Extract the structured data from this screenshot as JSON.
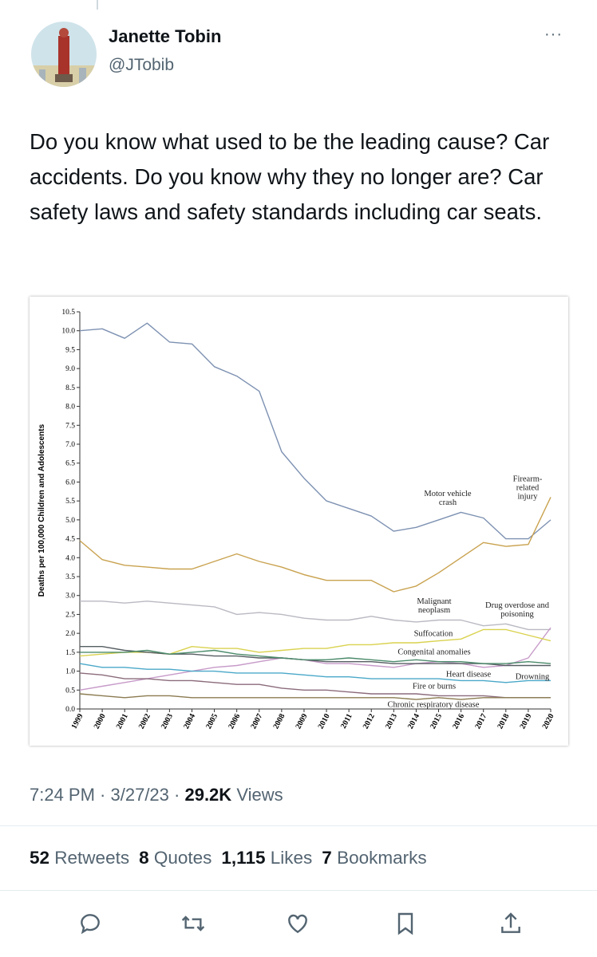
{
  "tweet": {
    "author_name": "Janette Tobin",
    "handle": "@JTobib",
    "text": "Do you know what used to be the leading cause? Car accidents. Do you know why they no longer are? Car safety laws and safety standards including car seats.",
    "time": "7:24 PM",
    "date": "3/27/23",
    "views": "29.2K",
    "views_label": "Views"
  },
  "stats": [
    {
      "count": "52",
      "label": "Retweets"
    },
    {
      "count": "8",
      "label": "Quotes"
    },
    {
      "count": "1,115",
      "label": "Likes"
    },
    {
      "count": "7",
      "label": "Bookmarks"
    }
  ],
  "chart_data": {
    "type": "line",
    "y_label": "Deaths per 100,000 Children and Adolescents",
    "categories": [
      "1999",
      "2000",
      "2001",
      "2002",
      "2003",
      "2004",
      "2005",
      "2006",
      "2007",
      "2008",
      "2009",
      "2010",
      "2011",
      "2012",
      "2013",
      "2014",
      "2015",
      "2016",
      "2017",
      "2018",
      "2019",
      "2020"
    ],
    "ylim": [
      0,
      10.5
    ],
    "yticks": [
      {
        "value": 0,
        "label": "0.0"
      },
      {
        "value": 0.5,
        "label": "0.5"
      },
      {
        "value": 1,
        "label": "1.0"
      },
      {
        "value": 1.5,
        "label": "1.5"
      },
      {
        "value": 2,
        "label": "2.0"
      },
      {
        "value": 2.5,
        "label": "2.5"
      },
      {
        "value": 3,
        "label": "3.0"
      },
      {
        "value": 3.5,
        "label": "3.5"
      },
      {
        "value": 4,
        "label": "4.0"
      },
      {
        "value": 4.5,
        "label": "4.5"
      },
      {
        "value": 5,
        "label": "5.0"
      },
      {
        "value": 5.5,
        "label": "5.5"
      },
      {
        "value": 6,
        "label": "6.0"
      },
      {
        "value": 6.5,
        "label": "6.5"
      },
      {
        "value": 7,
        "label": "7.0"
      },
      {
        "value": 7.5,
        "label": "7.5"
      },
      {
        "value": 8,
        "label": "8.0"
      },
      {
        "value": 8.5,
        "label": "8.5"
      },
      {
        "value": 9,
        "label": "9.0"
      },
      {
        "value": 9.5,
        "label": "9.5"
      },
      {
        "value": 10,
        "label": "10.0"
      },
      {
        "value": 10.5,
        "label": "10.5"
      }
    ],
    "series": [
      {
        "name": "Motor vehicle crash",
        "color": "#7d91b2",
        "values": [
          10.0,
          10.05,
          9.8,
          10.2,
          9.7,
          9.65,
          9.05,
          8.8,
          8.4,
          6.8,
          6.1,
          5.5,
          5.3,
          5.1,
          4.7,
          4.8,
          5.0,
          5.2,
          5.05,
          4.5,
          4.5,
          5.0
        ]
      },
      {
        "name": "Firearm-related injury",
        "color": "#c9a24f",
        "values": [
          4.45,
          3.95,
          3.8,
          3.75,
          3.7,
          3.7,
          3.9,
          4.1,
          3.9,
          3.75,
          3.55,
          3.4,
          3.4,
          3.4,
          3.1,
          3.25,
          3.6,
          4.0,
          4.4,
          4.3,
          4.35,
          5.6
        ]
      },
      {
        "name": "Malignant neoplasm",
        "color": "#b9b9c2",
        "values": [
          2.85,
          2.85,
          2.8,
          2.85,
          2.8,
          2.75,
          2.7,
          2.5,
          2.55,
          2.5,
          2.4,
          2.35,
          2.35,
          2.45,
          2.35,
          2.3,
          2.35,
          2.35,
          2.2,
          2.25,
          2.1,
          2.1
        ]
      },
      {
        "name": "Drug overdose and poisoning",
        "color": "#c79ac9",
        "values": [
          0.5,
          0.6,
          0.7,
          0.8,
          0.9,
          1.0,
          1.1,
          1.15,
          1.25,
          1.35,
          1.3,
          1.2,
          1.2,
          1.15,
          1.1,
          1.2,
          1.25,
          1.2,
          1.1,
          1.15,
          1.35,
          2.15
        ]
      },
      {
        "name": "Suffocation",
        "color": "#d9d24f",
        "values": [
          1.4,
          1.45,
          1.5,
          1.5,
          1.45,
          1.65,
          1.6,
          1.6,
          1.5,
          1.55,
          1.6,
          1.6,
          1.7,
          1.7,
          1.75,
          1.75,
          1.8,
          1.85,
          2.1,
          2.1,
          1.95,
          1.8
        ]
      },
      {
        "name": "Congenital anomalies",
        "color": "#565d62",
        "values": [
          1.65,
          1.65,
          1.55,
          1.5,
          1.45,
          1.45,
          1.4,
          1.4,
          1.35,
          1.35,
          1.3,
          1.25,
          1.25,
          1.25,
          1.2,
          1.2,
          1.2,
          1.2,
          1.2,
          1.15,
          1.15,
          1.15
        ]
      },
      {
        "name": "Heart disease",
        "color": "#4aa8c9",
        "values": [
          1.2,
          1.1,
          1.1,
          1.05,
          1.05,
          1.0,
          1.0,
          0.95,
          0.95,
          0.95,
          0.9,
          0.85,
          0.85,
          0.8,
          0.8,
          0.8,
          0.8,
          0.75,
          0.75,
          0.7,
          0.75,
          0.75
        ]
      },
      {
        "name": "Drowning",
        "color": "#4b8b6b",
        "values": [
          1.5,
          1.5,
          1.5,
          1.55,
          1.45,
          1.5,
          1.55,
          1.45,
          1.4,
          1.35,
          1.3,
          1.3,
          1.35,
          1.3,
          1.25,
          1.3,
          1.25,
          1.25,
          1.2,
          1.2,
          1.25,
          1.2
        ]
      },
      {
        "name": "Fire or burns",
        "color": "#8b6b7b",
        "values": [
          0.95,
          0.9,
          0.8,
          0.8,
          0.75,
          0.75,
          0.7,
          0.65,
          0.65,
          0.55,
          0.5,
          0.5,
          0.45,
          0.4,
          0.4,
          0.4,
          0.35,
          0.35,
          0.35,
          0.3,
          0.3,
          0.3
        ]
      },
      {
        "name": "Chronic respiratory disease",
        "color": "#8b7b51",
        "values": [
          0.4,
          0.35,
          0.3,
          0.35,
          0.35,
          0.3,
          0.3,
          0.3,
          0.3,
          0.3,
          0.3,
          0.3,
          0.3,
          0.3,
          0.3,
          0.25,
          0.3,
          0.25,
          0.3,
          0.3,
          0.3,
          0.3
        ]
      }
    ]
  }
}
